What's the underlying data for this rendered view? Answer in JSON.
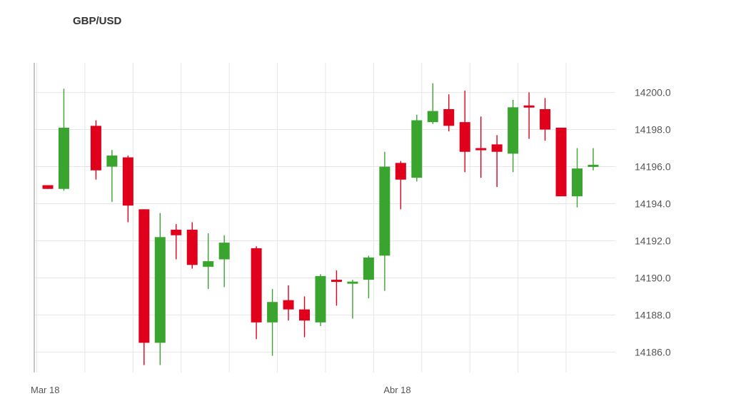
{
  "chart_data": {
    "type": "candlestick",
    "title": "GBP/USD",
    "x_tick_labels": [
      {
        "label": "Mar 18",
        "index": 0
      },
      {
        "label": "Abr 18",
        "index": 22
      }
    ],
    "y_ticks": [
      "14186.0",
      "14188.0",
      "14190.0",
      "14192.0",
      "14194.0",
      "14196.0",
      "14198.0",
      "14200.0"
    ],
    "ylim": [
      14184.9,
      14201.6
    ],
    "grid": true,
    "colors": {
      "up": "#3aa52e",
      "down": "#e0001b"
    },
    "candles": [
      {
        "i": 0,
        "open": 14195.0,
        "high": 14195.0,
        "low": 14194.8,
        "close": 14194.8
      },
      {
        "i": 1,
        "open": 14194.8,
        "high": 14200.2,
        "low": 14194.7,
        "close": 14198.1
      },
      {
        "i": 3,
        "open": 14198.2,
        "high": 14198.5,
        "low": 14195.3,
        "close": 14195.8
      },
      {
        "i": 4,
        "open": 14196.0,
        "high": 14196.9,
        "low": 14194.1,
        "close": 14196.6
      },
      {
        "i": 5,
        "open": 14196.5,
        "high": 14196.6,
        "low": 14193.0,
        "close": 14193.9
      },
      {
        "i": 6,
        "open": 14193.7,
        "high": 14193.7,
        "low": 14185.3,
        "close": 14186.5
      },
      {
        "i": 7,
        "open": 14186.5,
        "high": 14193.5,
        "low": 14185.3,
        "close": 14192.2
      },
      {
        "i": 8,
        "open": 14192.6,
        "high": 14192.9,
        "low": 14191.0,
        "close": 14192.3
      },
      {
        "i": 9,
        "open": 14192.6,
        "high": 14193.0,
        "low": 14190.5,
        "close": 14190.7
      },
      {
        "i": 10,
        "open": 14190.6,
        "high": 14192.4,
        "low": 14189.4,
        "close": 14190.9
      },
      {
        "i": 11,
        "open": 14191.0,
        "high": 14192.3,
        "low": 14189.5,
        "close": 14191.9
      },
      {
        "i": 13,
        "open": 14191.6,
        "high": 14191.7,
        "low": 14186.7,
        "close": 14187.6
      },
      {
        "i": 14,
        "open": 14187.6,
        "high": 14189.4,
        "low": 14185.8,
        "close": 14188.7
      },
      {
        "i": 15,
        "open": 14188.8,
        "high": 14189.6,
        "low": 14187.7,
        "close": 14188.3
      },
      {
        "i": 16,
        "open": 14188.3,
        "high": 14189.0,
        "low": 14186.8,
        "close": 14187.7
      },
      {
        "i": 17,
        "open": 14187.6,
        "high": 14190.2,
        "low": 14187.4,
        "close": 14190.1
      },
      {
        "i": 18,
        "open": 14189.9,
        "high": 14190.4,
        "low": 14188.5,
        "close": 14189.8
      },
      {
        "i": 19,
        "open": 14189.7,
        "high": 14189.9,
        "low": 14187.8,
        "close": 14189.8
      },
      {
        "i": 20,
        "open": 14189.9,
        "high": 14191.2,
        "low": 14188.9,
        "close": 14191.1
      },
      {
        "i": 21,
        "open": 14191.2,
        "high": 14196.8,
        "low": 14189.3,
        "close": 14196.0
      },
      {
        "i": 22,
        "open": 14196.2,
        "high": 14196.3,
        "low": 14193.7,
        "close": 14195.3
      },
      {
        "i": 23,
        "open": 14195.4,
        "high": 14198.8,
        "low": 14195.2,
        "close": 14198.5
      },
      {
        "i": 24,
        "open": 14198.4,
        "high": 14200.5,
        "low": 14198.3,
        "close": 14199.0
      },
      {
        "i": 25,
        "open": 14199.1,
        "high": 14199.9,
        "low": 14197.9,
        "close": 14198.2
      },
      {
        "i": 26,
        "open": 14198.4,
        "high": 14200.1,
        "low": 14195.7,
        "close": 14196.8
      },
      {
        "i": 27,
        "open": 14197.0,
        "high": 14198.7,
        "low": 14195.4,
        "close": 14196.9
      },
      {
        "i": 28,
        "open": 14197.2,
        "high": 14197.7,
        "low": 14194.9,
        "close": 14196.8
      },
      {
        "i": 29,
        "open": 14196.7,
        "high": 14199.6,
        "low": 14195.7,
        "close": 14199.2
      },
      {
        "i": 30,
        "open": 14199.3,
        "high": 14200.0,
        "low": 14197.5,
        "close": 14199.2
      },
      {
        "i": 31,
        "open": 14199.1,
        "high": 14199.7,
        "low": 14197.4,
        "close": 14198.0
      },
      {
        "i": 32,
        "open": 14198.1,
        "high": 14198.1,
        "low": 14194.4,
        "close": 14194.4
      },
      {
        "i": 33,
        "open": 14194.4,
        "high": 14197.0,
        "low": 14193.8,
        "close": 14195.9
      },
      {
        "i": 34,
        "open": 14196.0,
        "high": 14197.0,
        "low": 14195.8,
        "close": 14196.1
      }
    ]
  }
}
